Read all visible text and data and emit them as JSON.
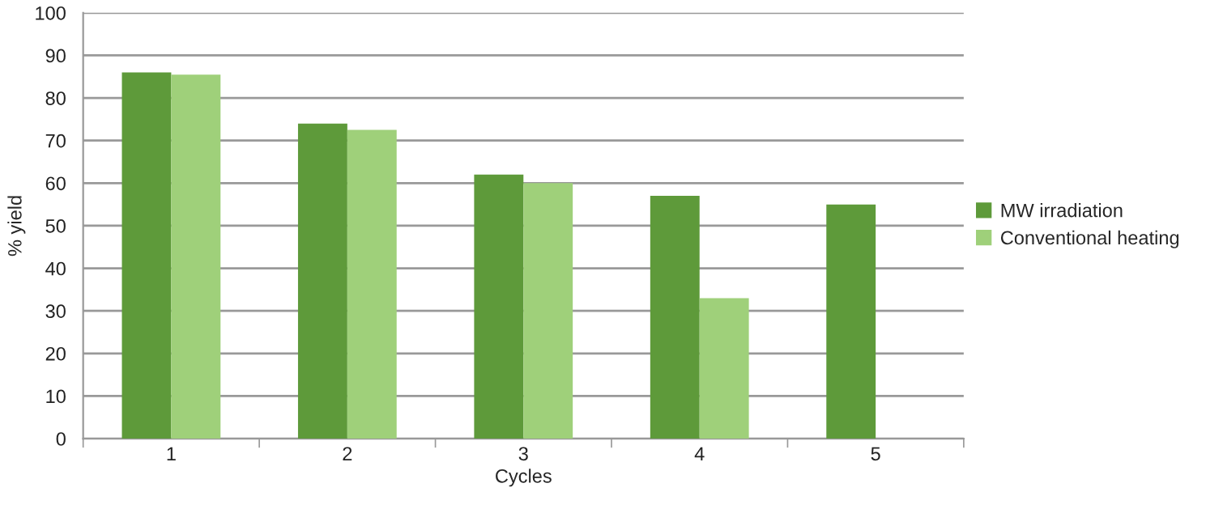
{
  "chart_data": {
    "type": "bar",
    "xlabel": "Cycles",
    "ylabel": "% yield",
    "categories": [
      "1",
      "2",
      "3",
      "4",
      "5"
    ],
    "series": [
      {
        "name": "MW irradiation",
        "color": "#5e9a3a",
        "values": [
          86,
          74,
          62,
          57,
          55
        ]
      },
      {
        "name": "Conventional heating",
        "color": "#9fd07a",
        "values": [
          85.5,
          72.5,
          60,
          33,
          null
        ]
      }
    ],
    "ylim": [
      0,
      100
    ],
    "yticks": [
      0,
      10,
      20,
      30,
      40,
      50,
      60,
      70,
      80,
      90,
      100
    ],
    "grid": "y",
    "legend": "right"
  }
}
